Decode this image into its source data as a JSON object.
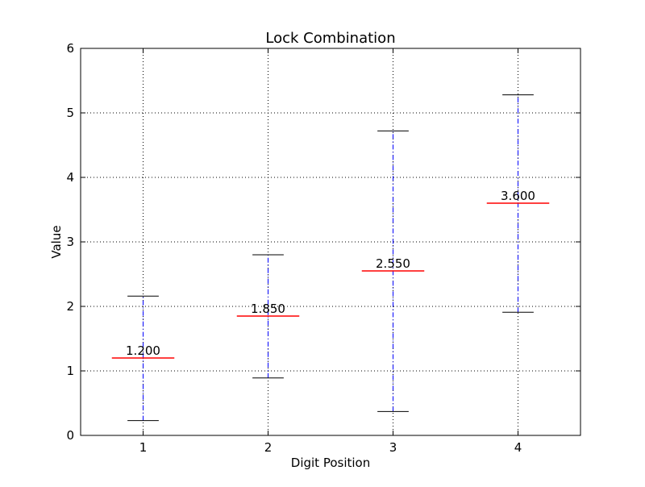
{
  "chart_data": {
    "type": "errorbar",
    "title": "Lock Combination",
    "xlabel": "Digit Position",
    "ylabel": "Value",
    "xlim": [
      0.5,
      4.5
    ],
    "ylim": [
      0,
      6
    ],
    "x_ticks": [
      "1",
      "2",
      "3",
      "4"
    ],
    "y_ticks": [
      "0",
      "1",
      "2",
      "3",
      "4",
      "5",
      "6"
    ],
    "grid": true,
    "items": [
      {
        "x": 1,
        "label": "1.200",
        "value": 1.2,
        "low": 0.23,
        "high": 2.16
      },
      {
        "x": 2,
        "label": "1.850",
        "value": 1.85,
        "low": 0.89,
        "high": 2.8
      },
      {
        "x": 3,
        "label": "2.550",
        "value": 2.55,
        "low": 0.37,
        "high": 4.72
      },
      {
        "x": 4,
        "label": "3.600",
        "value": 3.6,
        "low": 1.91,
        "high": 5.28
      }
    ],
    "colors": {
      "median": "#ff0000",
      "whisker": "#0000ff",
      "cap": "#000000"
    }
  }
}
